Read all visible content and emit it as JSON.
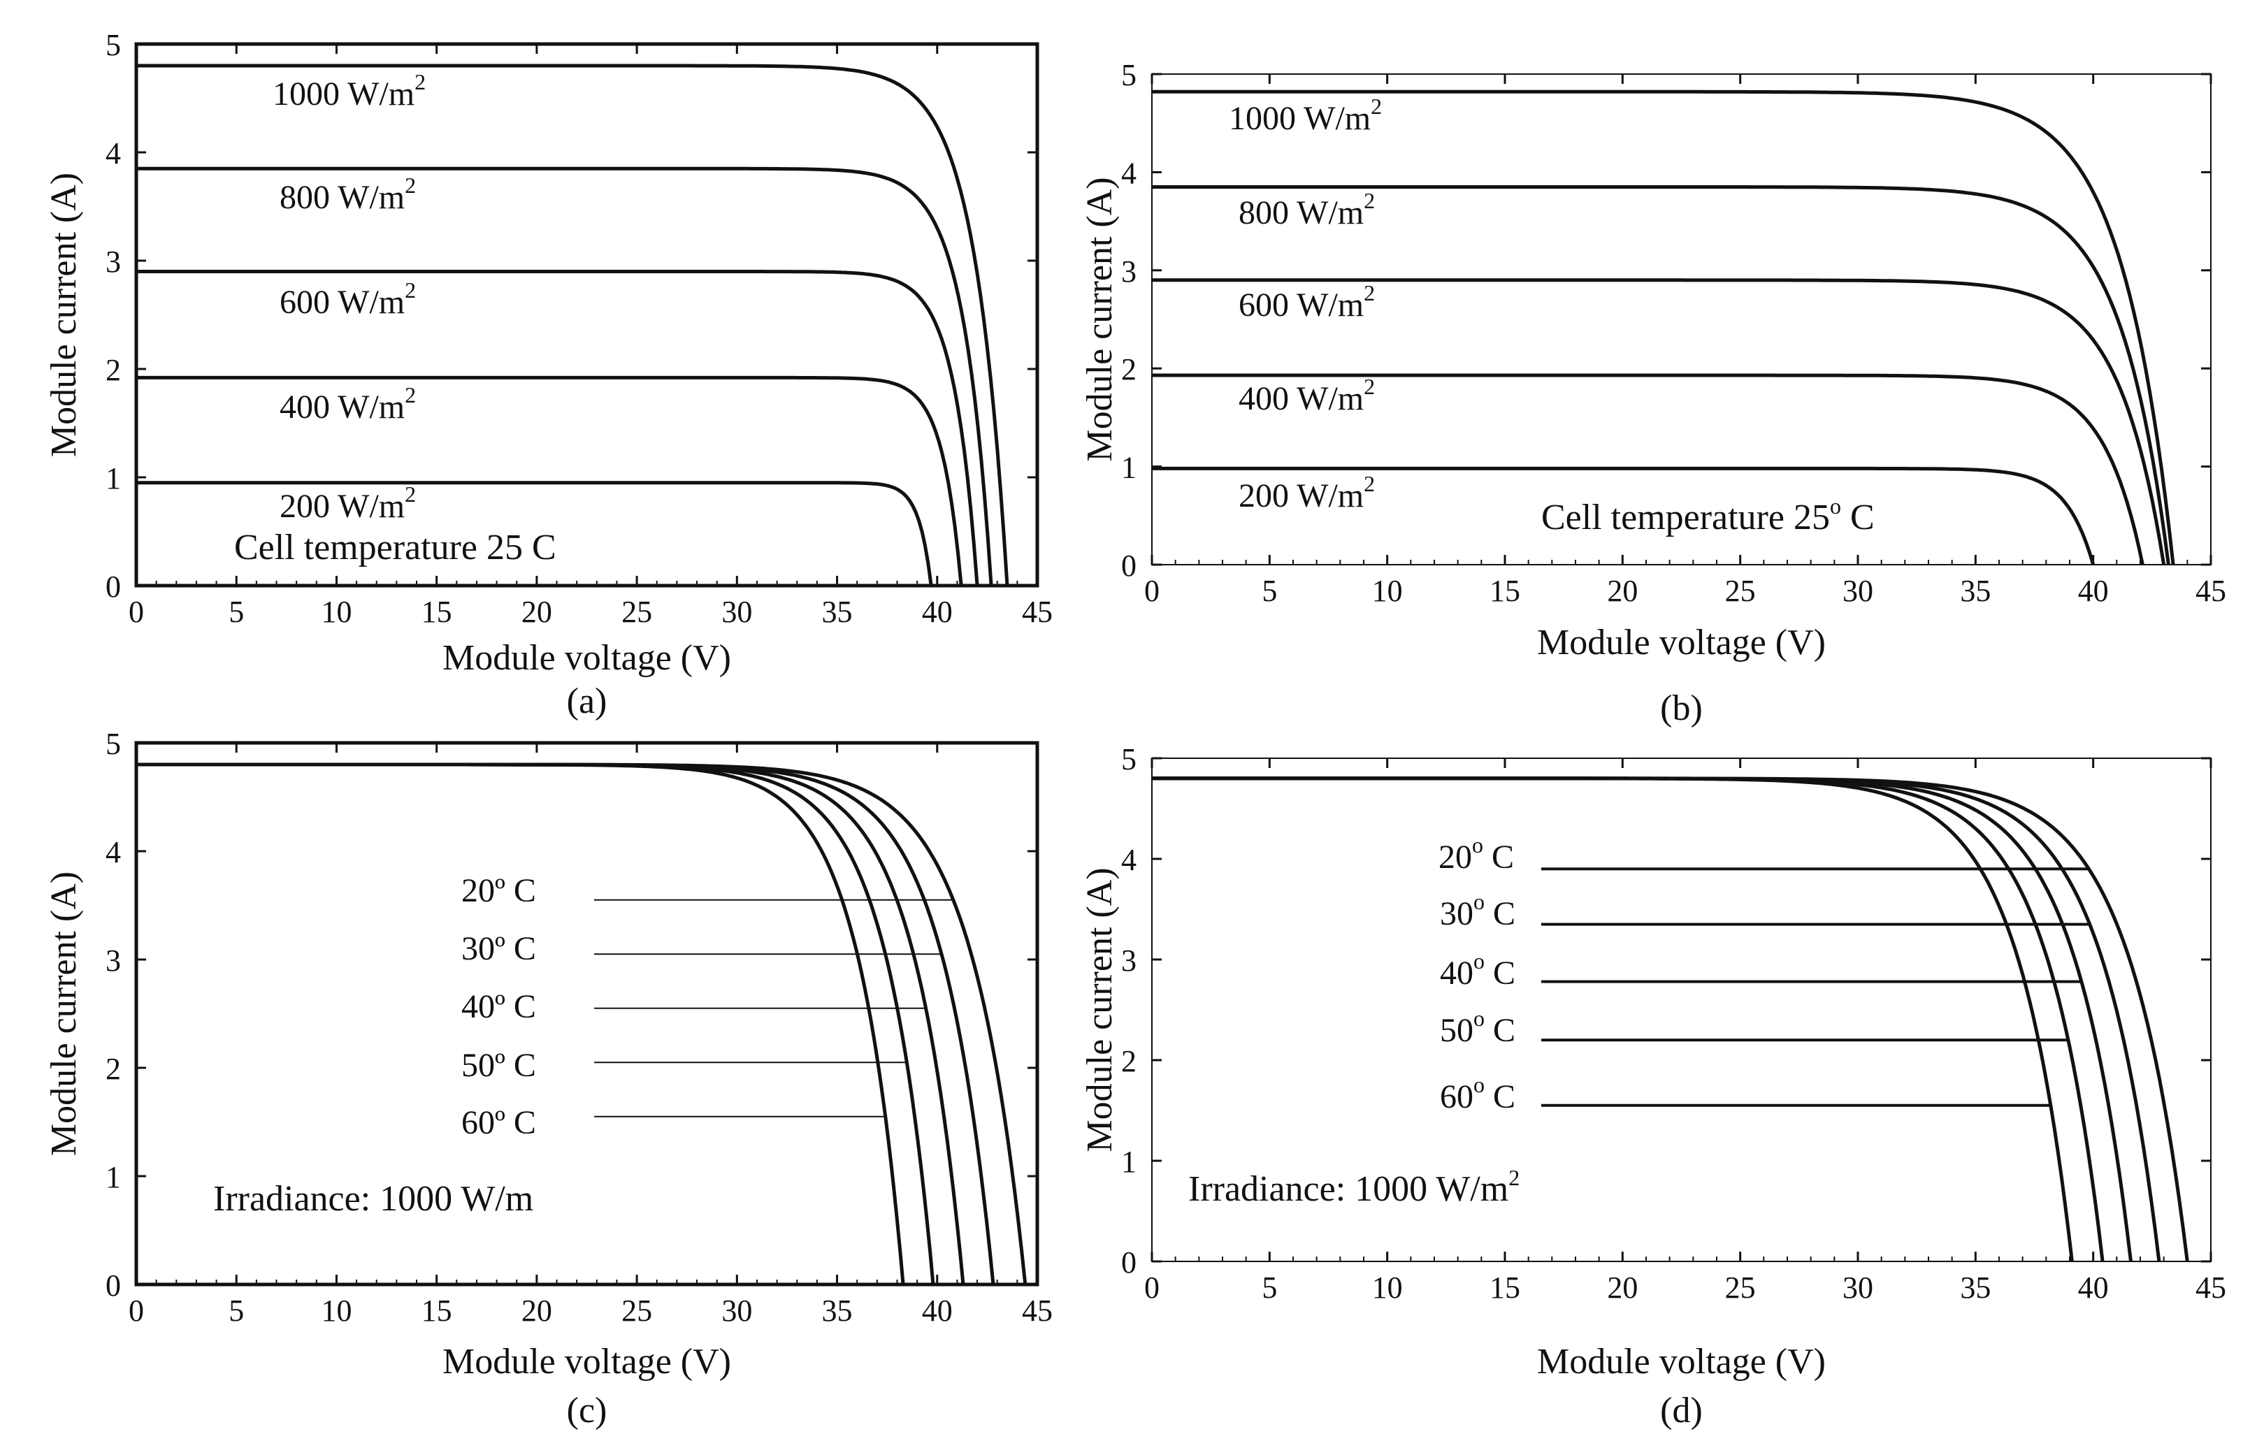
{
  "chart_data": [
    {
      "id": "a",
      "type": "line",
      "caption": "(a)",
      "xlabel": "Module voltage (V)",
      "ylabel": "Module current (A)",
      "xlim": [
        0,
        45
      ],
      "ylim": [
        0,
        5
      ],
      "xticks": [
        0,
        5,
        10,
        15,
        20,
        25,
        30,
        35,
        40,
        45
      ],
      "yticks": [
        0,
        1,
        2,
        3,
        4,
        5
      ],
      "annotation": "Cell temperature 25  C",
      "series": [
        {
          "name": "1000 W/m",
          "sup": "2",
          "isc": 4.8,
          "voc": 43.5,
          "knee": 35.0
        },
        {
          "name": "800 W/m",
          "sup": "2",
          "isc": 3.85,
          "voc": 42.7,
          "knee": 35.5
        },
        {
          "name": "600 W/m",
          "sup": "2",
          "isc": 2.9,
          "voc": 42.0,
          "knee": 36.0
        },
        {
          "name": "400 W/m",
          "sup": "2",
          "isc": 1.92,
          "voc": 41.2,
          "knee": 36.3
        },
        {
          "name": "200 W/m",
          "sup": "2",
          "isc": 0.95,
          "voc": 39.7,
          "knee": 36.5
        }
      ]
    },
    {
      "id": "b",
      "type": "line",
      "caption": "(b)",
      "xlabel": "Module voltage (V)",
      "ylabel": "Module current (A)",
      "xlim": [
        0,
        45
      ],
      "ylim": [
        0,
        5
      ],
      "xticks": [
        0,
        5,
        10,
        15,
        20,
        25,
        30,
        35,
        40,
        45
      ],
      "yticks": [
        0,
        1,
        2,
        3,
        4,
        5
      ],
      "annotation": "Cell temperature 25",
      "annotation_sup": "o",
      "annotation_tail": " C",
      "series": [
        {
          "name": "1000 W/m",
          "sup": "2",
          "isc": 4.82,
          "voc": 43.4,
          "knee": 32.0
        },
        {
          "name": "800 W/m",
          "sup": "2",
          "isc": 3.85,
          "voc": 43.2,
          "knee": 32.5
        },
        {
          "name": "600 W/m",
          "sup": "2",
          "isc": 2.9,
          "voc": 43.0,
          "knee": 33.0
        },
        {
          "name": "400 W/m",
          "sup": "2",
          "isc": 1.93,
          "voc": 42.1,
          "knee": 33.5
        },
        {
          "name": "200 W/m",
          "sup": "2",
          "isc": 0.98,
          "voc": 40.0,
          "knee": 34.0
        }
      ]
    },
    {
      "id": "c",
      "type": "line",
      "caption": "(c)",
      "xlabel": "Module voltage (V)",
      "ylabel": "Module current (A)",
      "xlim": [
        0,
        45
      ],
      "ylim": [
        0,
        5
      ],
      "xticks": [
        0,
        5,
        10,
        15,
        20,
        25,
        30,
        35,
        40,
        45
      ],
      "yticks": [
        0,
        1,
        2,
        3,
        4,
        5
      ],
      "annotation": "Irradiance: 1000 W/m",
      "series": [
        {
          "name": "20º  C",
          "isc": 4.8,
          "voc": 44.4,
          "knee": 30.5,
          "leader_y": 3.55
        },
        {
          "name": "30º  C",
          "isc": 4.8,
          "voc": 42.8,
          "knee": 29.5,
          "leader_y": 3.05
        },
        {
          "name": "40º  C",
          "isc": 4.8,
          "voc": 41.3,
          "knee": 28.5,
          "leader_y": 2.55
        },
        {
          "name": "50º  C",
          "isc": 4.8,
          "voc": 39.8,
          "knee": 27.5,
          "leader_y": 2.05
        },
        {
          "name": "60º  C",
          "isc": 4.8,
          "voc": 38.3,
          "knee": 26.5,
          "leader_y": 1.55
        }
      ]
    },
    {
      "id": "d",
      "type": "line",
      "caption": "(d)",
      "xlabel": "Module voltage (V)",
      "ylabel": "Module current (A)",
      "xlim": [
        0,
        45
      ],
      "ylim": [
        0,
        5
      ],
      "xticks": [
        0,
        5,
        10,
        15,
        20,
        25,
        30,
        35,
        40,
        45
      ],
      "yticks": [
        0,
        1,
        2,
        3,
        4,
        5
      ],
      "annotation": "Irradiance: 1000 W/m",
      "annotation_sup": "2",
      "series": [
        {
          "name": "20",
          "sup": "o",
          "tail": " C",
          "isc": 4.8,
          "voc": 44.0,
          "knee": 31.0,
          "leader_y": 3.9
        },
        {
          "name": "30",
          "sup": "o",
          "tail": " C",
          "isc": 4.8,
          "voc": 42.8,
          "knee": 30.0,
          "leader_y": 3.35
        },
        {
          "name": "40",
          "sup": "o",
          "tail": " C",
          "isc": 4.8,
          "voc": 41.6,
          "knee": 29.0,
          "leader_y": 2.78
        },
        {
          "name": "50",
          "sup": "o",
          "tail": " C",
          "isc": 4.8,
          "voc": 40.4,
          "knee": 28.0,
          "leader_y": 2.2
        },
        {
          "name": "60",
          "sup": "o",
          "tail": " C",
          "isc": 4.8,
          "voc": 39.1,
          "knee": 27.0,
          "leader_y": 1.55
        }
      ]
    }
  ]
}
